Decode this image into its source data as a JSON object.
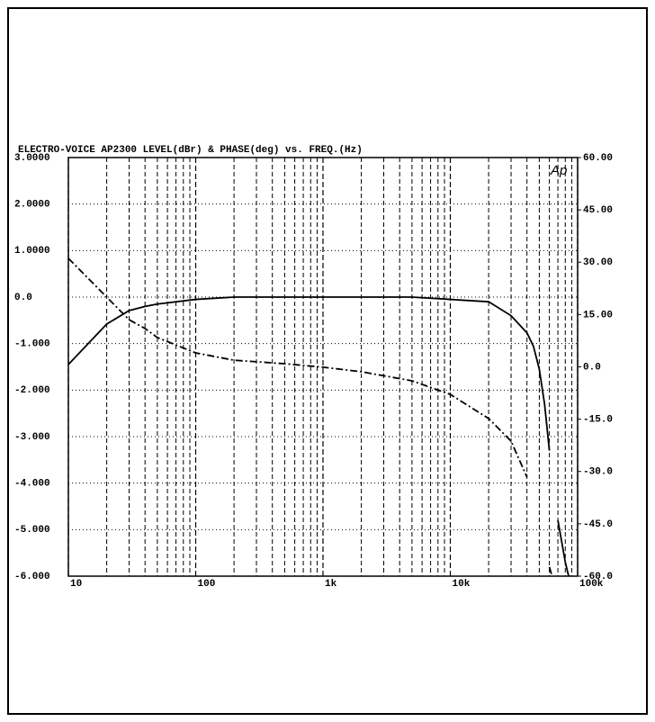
{
  "chart_data": {
    "type": "line",
    "title": "ELECTRO-VOICE AP2300  LEVEL(dBr) & PHASE(deg) vs. FREQ.(Hz)",
    "logo": "Ap",
    "x": [
      10,
      20,
      30,
      40,
      50,
      100,
      200,
      500,
      1000,
      2000,
      5000,
      10000,
      20000,
      30000,
      40000,
      45000,
      50000,
      55000,
      60000,
      63000,
      70000,
      80000,
      85000
    ],
    "series": [
      {
        "color": "#000000",
        "style": "solid",
        "values": [
          -1.45,
          -0.58,
          -0.29,
          -0.2,
          -0.15,
          -0.05,
          0.0,
          0.0,
          0.0,
          0.0,
          0.0,
          -0.05,
          -0.1,
          -0.4,
          -0.77,
          -1.06,
          -1.55,
          -2.3,
          -3.3,
          null,
          -4.8,
          -5.7,
          -6.0
        ]
      },
      {
        "color": "#000000",
        "style": "dashdot",
        "axis": "y2",
        "values": [
          31.1,
          20,
          13.5,
          11,
          8.4,
          4,
          1.9,
          0.9,
          -0.1,
          -1.4,
          -4,
          -7.9,
          -14.8,
          -21.3,
          -31.6,
          null,
          -44.5,
          null,
          -57.4,
          -60,
          null,
          null,
          null
        ]
      }
    ],
    "xscale": "log",
    "xlim": [
      10,
      100000
    ],
    "xticks": [
      10,
      100,
      {
        "value": 1000,
        "label": "1k"
      },
      {
        "value": 10000,
        "label": "10k"
      },
      {
        "value": 100000,
        "label": "100k"
      }
    ],
    "ylim": [
      -6,
      3
    ],
    "yticks": [
      {
        "value": 3,
        "label": "3.0000"
      },
      {
        "value": 2,
        "label": "2.0000"
      },
      {
        "value": 1,
        "label": "1.0000"
      },
      {
        "value": 0,
        "label": "0.0"
      },
      {
        "value": -1,
        "label": "-1.000"
      },
      {
        "value": -2,
        "label": "-2.000"
      },
      {
        "value": -3,
        "label": "-3.000"
      },
      {
        "value": -4,
        "label": "-4.000"
      },
      {
        "value": -5,
        "label": "-5.000"
      },
      {
        "value": -6,
        "label": "-6.000"
      }
    ],
    "y2lim": [
      -60,
      60
    ],
    "y2ticks": [
      {
        "value": 60,
        "label": "60.00"
      },
      {
        "value": 45,
        "label": "45.00"
      },
      {
        "value": 30,
        "label": "30.00"
      },
      {
        "value": 15,
        "label": "15.00"
      },
      {
        "value": 0,
        "label": "0.0"
      },
      {
        "value": -15,
        "label": "-15.0"
      },
      {
        "value": -30,
        "label": "-30.0"
      },
      {
        "value": -45,
        "label": "-45.0"
      },
      {
        "value": -60,
        "label": "-60.0"
      }
    ],
    "grid": true
  }
}
